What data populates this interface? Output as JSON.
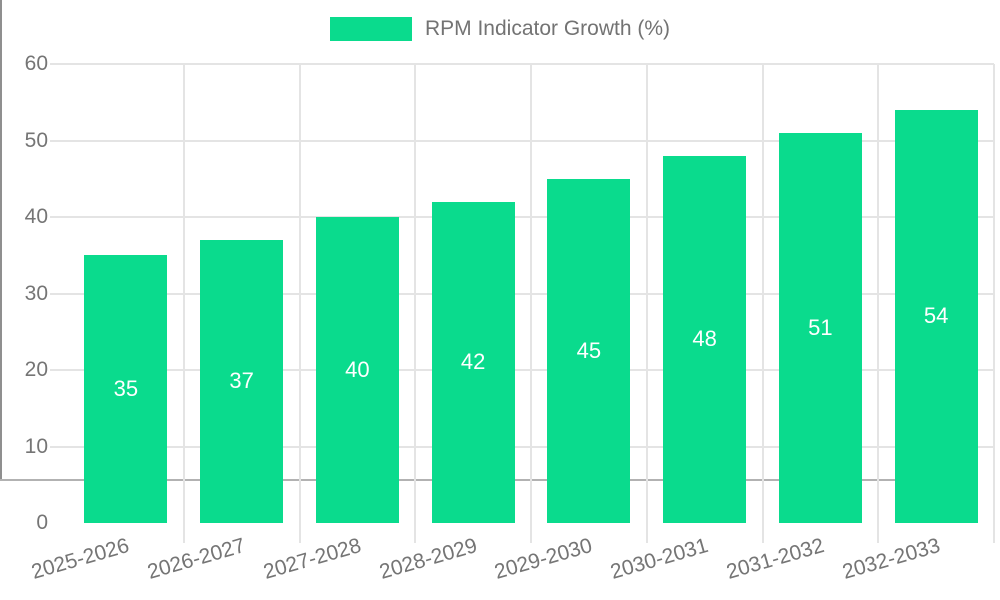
{
  "chart_data": {
    "type": "bar",
    "title": "",
    "categories": [
      "2025-2026",
      "2026-2027",
      "2027-2028",
      "2028-2029",
      "2029-2030",
      "2030-2031",
      "2031-2032",
      "2032-2033"
    ],
    "series": [
      {
        "name": "RPM Indicator Growth (%)",
        "values": [
          35,
          37,
          40,
          42,
          45,
          48,
          51,
          54
        ]
      }
    ],
    "value_labels": [
      35,
      37,
      40,
      42,
      45,
      48,
      51,
      54
    ],
    "xlabel": "",
    "ylabel": "",
    "ylim": [
      0,
      60
    ],
    "y_ticks": [
      0,
      10,
      20,
      30,
      40,
      50,
      60
    ],
    "grid": true,
    "legend_position": "top",
    "value_label_position": "inside-center"
  },
  "colors": {
    "bar": "#0adb8d",
    "grid": "#e4e4e4",
    "axis_y_line": "#8f8f8f",
    "axis_x_line": "#b2b2b2",
    "axis_text": "#757575",
    "legend_text": "#737373",
    "value_text": "#ffffff",
    "background": "#ffffff"
  }
}
